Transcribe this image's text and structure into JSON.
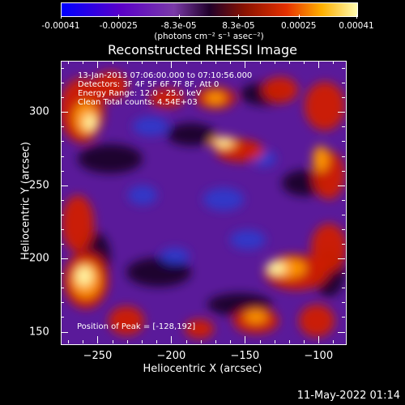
{
  "chart_data": {
    "type": "heatmap",
    "title": "Reconstructed RHESSI Image",
    "xlabel": "Heliocentric X (arcsec)",
    "ylabel": "Heliocentric Y (arcsec)",
    "xlim": [
      -275,
      -82
    ],
    "ylim": [
      142,
      335
    ],
    "x_ticks": [
      -250,
      -200,
      -150,
      -100
    ],
    "y_ticks": [
      150,
      200,
      250,
      300
    ],
    "colorbar": {
      "range": [
        -0.00041,
        0.00041
      ],
      "tick_labels": [
        "-0.00041",
        "-0.00025",
        "-8.3e-05",
        "8.3e-05",
        "0.00025",
        "0.00041"
      ],
      "units": "(photons cm⁻² s⁻¹ asec⁻²)"
    },
    "info_lines": [
      "13-Jan-2013 07:06:00.000 to 07:10:56.000",
      "Detectors: 3F 4F 5F 6F 7F 8F, Att 0",
      "Energy Range: 12.0 - 25.0 keV",
      "Clean    Total counts: 4.54E+03"
    ],
    "peak_label": "Position of Peak = [-128,192]",
    "peak_position": [
      -128,
      192
    ],
    "grid": false
  },
  "footer": {
    "timestamp": "11-May-2022 01:14"
  }
}
